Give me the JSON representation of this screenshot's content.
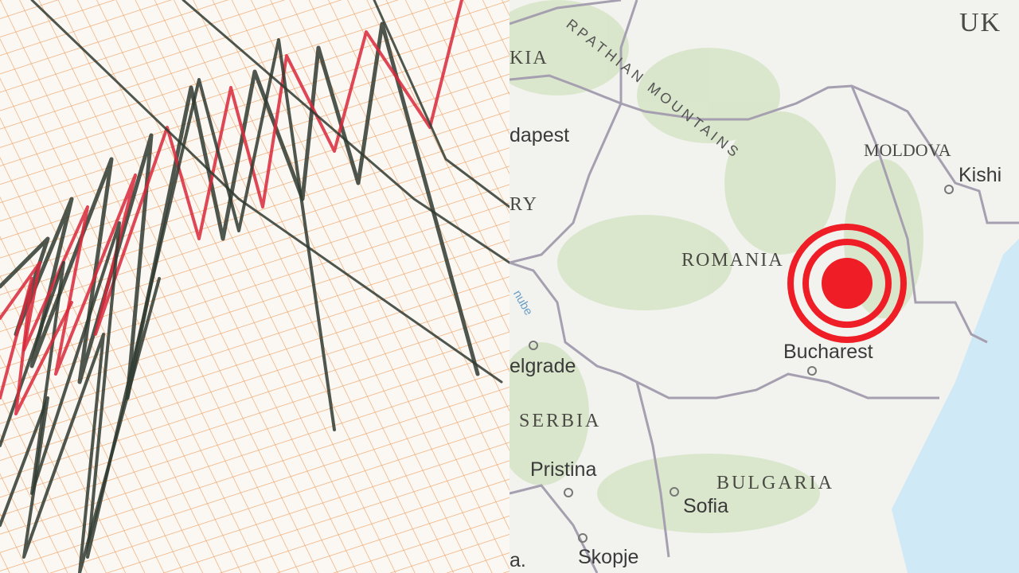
{
  "seismogram": {
    "grid_color": "#e8923a",
    "trace_colors": [
      "#2f3a30",
      "#d8283a"
    ]
  },
  "map": {
    "labels": {
      "mountains": "RPATHIAN MOUNTAINS",
      "slovakia": "KIA",
      "budapest": "dapest",
      "hungary": "RY",
      "ukraine": "UK",
      "moldova": "MOLDOVA",
      "kishinev": "Kishi",
      "romania": "ROMANIA",
      "danube": "nube",
      "belgrade": "elgrade",
      "serbia": "SERBIA",
      "pristina": "Pristina",
      "bulgaria": "BULGARIA",
      "sofia": "Sofia",
      "skopje": "Skopje",
      "bucharest": "Bucharest",
      "edge_fragment": "a."
    },
    "colors": {
      "land": "#f2f3ef",
      "forest": "#d5e4c4",
      "sea": "#cfe9f6",
      "border": "#a59fb0",
      "epicenter": "#ef1e26"
    }
  }
}
